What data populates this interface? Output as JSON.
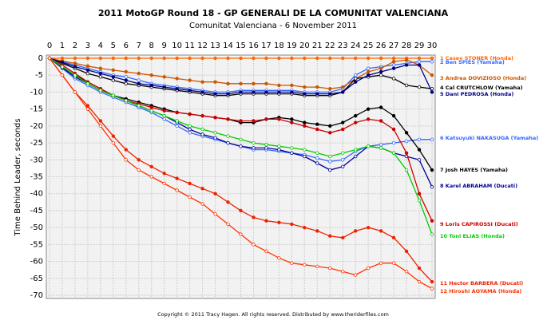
{
  "chart_data": {
    "type": "line",
    "title": "2011 MotoGP Round 18 - GP GENERALI DE LA COMUNITAT VALENCIANA",
    "subtitle": "Comunitat Valenciana - 6 November 2011",
    "y_label": "Time Behind Leader, seconds",
    "footer": "Copyright © 2011 Tracy Hagen. All rights reserved. Distributed by www.theriderfiles.com",
    "x": [
      0,
      1,
      2,
      3,
      4,
      5,
      6,
      7,
      8,
      9,
      10,
      11,
      12,
      13,
      14,
      15,
      16,
      17,
      18,
      19,
      20,
      21,
      22,
      23,
      24,
      25,
      26,
      27,
      28,
      29,
      30
    ],
    "xlim": [
      0,
      30
    ],
    "xticks": [
      0,
      1,
      2,
      3,
      4,
      5,
      6,
      7,
      8,
      9,
      10,
      11,
      12,
      13,
      14,
      15,
      16,
      17,
      18,
      19,
      20,
      21,
      22,
      23,
      24,
      25,
      26,
      27,
      28,
      29,
      30
    ],
    "ylim": [
      -70,
      0
    ],
    "yticks": [
      0,
      -5,
      -10,
      -15,
      -20,
      -25,
      -30,
      -35,
      -40,
      -45,
      -50,
      -55,
      -60,
      -65,
      -70
    ],
    "grid": true,
    "series": [
      {
        "name": "1 Casey STONER (Honda)",
        "color": "#ff6600",
        "values": [
          0,
          0,
          0,
          0,
          0,
          0,
          0,
          0,
          0,
          0,
          0,
          0,
          0,
          0,
          0,
          0,
          0,
          0,
          0,
          0,
          0,
          0,
          0,
          0,
          0,
          0,
          0,
          0,
          0,
          0,
          0
        ]
      },
      {
        "name": "2 Ben SPIES (Yamaha)",
        "color": "#3366ff",
        "values": [
          0,
          -1,
          -2,
          -3,
          -4,
          -5,
          -5.5,
          -6.5,
          -7.5,
          -8,
          -8.5,
          -9,
          -9.5,
          -10,
          -10,
          -9.5,
          -9.5,
          -9.5,
          -9.5,
          -9.5,
          -10,
          -10,
          -10,
          -9,
          -5,
          -3,
          -2.5,
          -2,
          -1.5,
          -1,
          -1
        ]
      },
      {
        "name": "3 Andrea DOVIZIOSO (Honda)",
        "color": "#cc5500",
        "values": [
          0,
          -0.8,
          -1.5,
          -2.3,
          -3,
          -3.5,
          -4,
          -4.5,
          -5,
          -5.5,
          -6,
          -6.5,
          -7,
          -7,
          -7.5,
          -7.5,
          -7.5,
          -7.5,
          -8,
          -8,
          -8.5,
          -8.5,
          -9,
          -8.5,
          -6,
          -4,
          -3,
          -1,
          -0.5,
          -2,
          -5
        ]
      },
      {
        "name": "4 Cal CRUTCHLOW (Yamaha)",
        "color": "#000000",
        "values": [
          0,
          -1.5,
          -3,
          -4.5,
          -5.5,
          -6.5,
          -7.5,
          -8,
          -8.5,
          -9,
          -9.5,
          -10,
          -10.5,
          -11,
          -11,
          -10.5,
          -10.5,
          -10.5,
          -10.5,
          -10.5,
          -11,
          -11,
          -11,
          -10,
          -6,
          -5.5,
          -5,
          -6,
          -8,
          -8.5,
          -9
        ]
      },
      {
        "name": "5 Dani PEDROSA (Honda)",
        "color": "#000080",
        "values": [
          0,
          -1.2,
          -2.5,
          -3.5,
          -4.5,
          -5.5,
          -6.5,
          -7.5,
          -8,
          -8.5,
          -9,
          -9.5,
          -10,
          -10.5,
          -10.5,
          -10,
          -10,
          -10,
          -10,
          -10,
          -10.5,
          -10.5,
          -10.5,
          -10,
          -7,
          -5,
          -4,
          -3,
          -2,
          -2,
          -10
        ]
      },
      {
        "name": "6 Katsuyuki NAKASUGA (Yamaha)",
        "color": "#3366ff",
        "values": [
          0,
          -3,
          -6,
          -8,
          -10,
          -11.5,
          -13,
          -14.5,
          -16,
          -18,
          -20,
          -22,
          -23,
          -24,
          -25,
          -26,
          -27,
          -27,
          -27.5,
          -28,
          -28.5,
          -29.5,
          -30.5,
          -30,
          -27.5,
          -26,
          -25.5,
          -25,
          -24.5,
          -24,
          -24
        ]
      },
      {
        "name": "7 Josh HAYES (Yamaha)",
        "color": "#000000",
        "values": [
          0,
          -2.5,
          -5,
          -7,
          -9,
          -11,
          -12,
          -13,
          -14,
          -15,
          -16,
          -16.5,
          -17,
          -17.5,
          -18,
          -19,
          -19,
          -18,
          -17.5,
          -18,
          -19,
          -19.5,
          -20,
          -19,
          -17,
          -15,
          -14.5,
          -17,
          -22,
          -27,
          -33
        ]
      },
      {
        "name": "8 Karel ABRAHAM (Ducati)",
        "color": "#000099",
        "values": [
          0,
          -2.8,
          -5.5,
          -7.5,
          -9.5,
          -11,
          -12.5,
          -14,
          -15.5,
          -17,
          -19,
          -21,
          -22.5,
          -23.5,
          -25,
          -26,
          -26.5,
          -26.5,
          -27,
          -28,
          -29,
          -31,
          -33,
          -32,
          -29,
          -26,
          -26.5,
          -28,
          -29,
          -30,
          -38
        ]
      },
      {
        "name": "9 Loris CAPIROSSI (Ducati)",
        "color": "#cc0000",
        "values": [
          0,
          -2,
          -4.5,
          -7,
          -9,
          -11,
          -12.5,
          -13.5,
          -14.5,
          -15.5,
          -16,
          -16.5,
          -17,
          -17.5,
          -18,
          -18.5,
          -18.5,
          -18,
          -18,
          -19,
          -20,
          -21,
          -22,
          -21,
          -19,
          -18,
          -18.5,
          -21,
          -28,
          -40,
          -48
        ]
      },
      {
        "name": "10 Toni ELIAS (Honda)",
        "color": "#00cc00",
        "values": [
          0,
          -2.5,
          -5,
          -7.5,
          -9.5,
          -11,
          -12.5,
          -14,
          -15.5,
          -17,
          -18.5,
          -20,
          -21,
          -22,
          -23,
          -24,
          -25,
          -25.5,
          -26,
          -26.5,
          -27,
          -28,
          -29,
          -28,
          -27,
          -26,
          -26.5,
          -28,
          -33,
          -42,
          -52
        ]
      },
      {
        "name": "11 Hector BARBERA (Ducati)",
        "color": "#ee2200",
        "values": [
          0,
          -5,
          -10,
          -14,
          -18.5,
          -23,
          -27,
          -30,
          -32,
          -34,
          -35.5,
          -37,
          -38.5,
          -40,
          -42.5,
          -45,
          -47,
          -48,
          -48.5,
          -49,
          -50,
          -51,
          -52.5,
          -53,
          -51,
          -50,
          -51,
          -53,
          -57,
          -62,
          -66
        ]
      },
      {
        "name": "12 Hiroshi AOYAMA (Honda)",
        "color": "#ff3300",
        "values": [
          0,
          -5,
          -10,
          -15,
          -20,
          -25,
          -30,
          -33,
          -35,
          -37,
          -39,
          -41,
          -43,
          -46,
          -49,
          -52,
          -55,
          -57,
          -59,
          -60.5,
          -61,
          -61.5,
          -62,
          -63,
          -64,
          -62,
          -60.5,
          -60.5,
          -63,
          -66,
          -68
        ]
      }
    ]
  }
}
